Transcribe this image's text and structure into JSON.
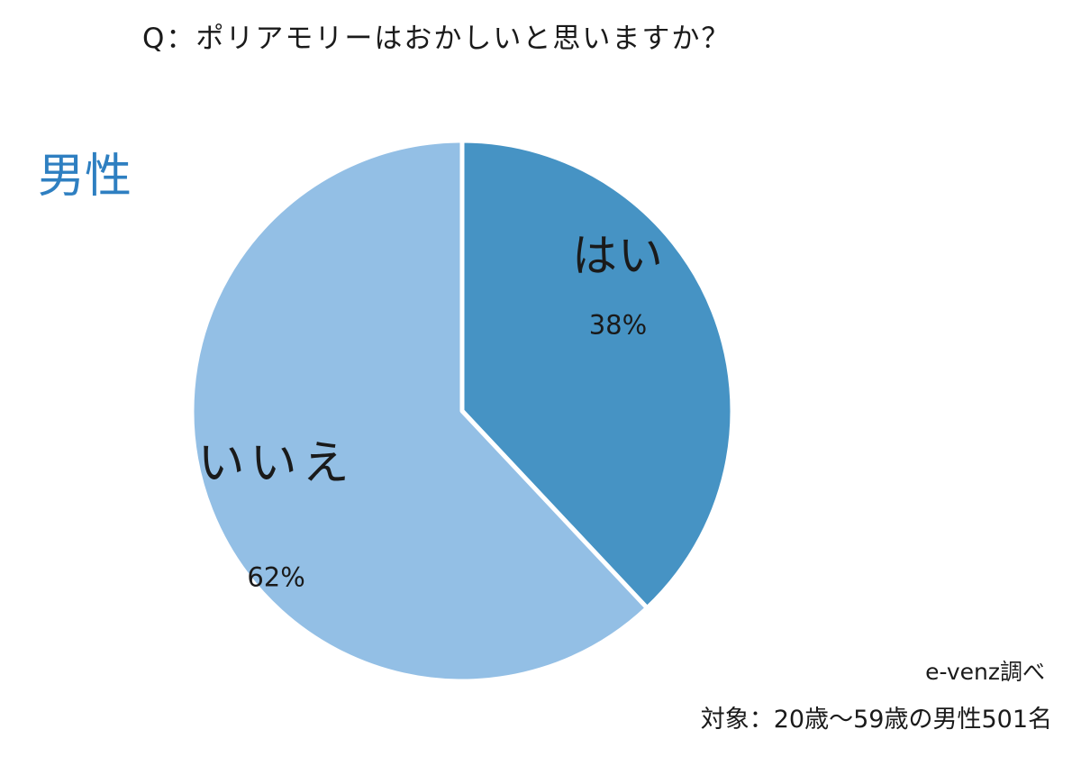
{
  "question": "Q：ポリアモリーはおかしいと思いますか？",
  "group_label": "男性",
  "source": "e-venz調べ",
  "target": "対象：20歳〜59歳の男性501名",
  "colors": {
    "group_label": "#2e7fc1",
    "slice_yes": "#4693c4",
    "slice_no": "#93bfe5",
    "border": "#ffffff"
  },
  "chart_data": {
    "type": "pie",
    "title": "Q：ポリアモリーはおかしいと思いますか？",
    "start_angle": "12 o'clock",
    "direction": "clockwise",
    "slices": [
      {
        "label": "はい",
        "value": 38,
        "value_label": "38%",
        "color": "#4693c4"
      },
      {
        "label": "いいえ",
        "value": 62,
        "value_label": "62%",
        "color": "#93bfe5"
      }
    ]
  }
}
